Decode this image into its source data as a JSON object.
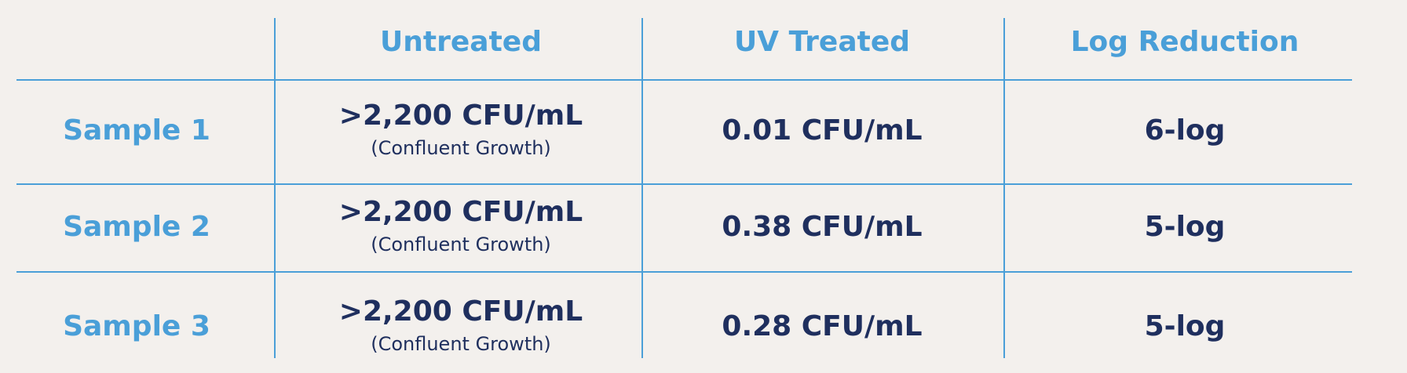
{
  "table": {
    "columns": [
      "Untreated",
      "UV Treated",
      "Log Reduction"
    ],
    "rows": [
      {
        "label": "Sample 1",
        "untreated": ">2,200 CFU/mL",
        "untreated_note": "(Confluent Growth)",
        "uv_treated": "0.01 CFU/mL",
        "log_reduction": "6-log"
      },
      {
        "label": "Sample 2",
        "untreated": ">2,200 CFU/mL",
        "untreated_note": "(Confluent Growth)",
        "uv_treated": "0.38 CFU/mL",
        "log_reduction": "5-log"
      },
      {
        "label": "Sample 3",
        "untreated": ">2,200 CFU/mL",
        "untreated_note": "(Confluent Growth)",
        "uv_treated": "0.28 CFU/mL",
        "log_reduction": "5-log"
      }
    ]
  }
}
